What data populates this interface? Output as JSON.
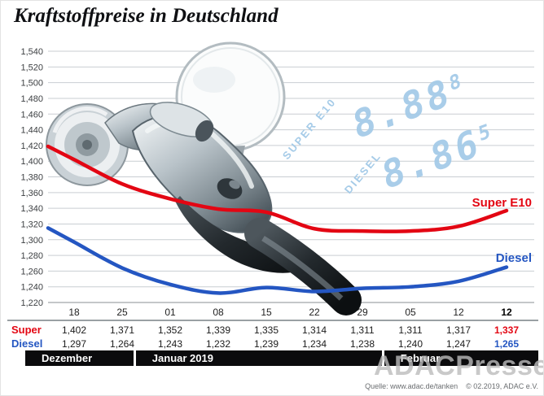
{
  "title": "Kraftstoffpreise in Deutschland",
  "watermark": "ADACPresse",
  "source": "Quelle: www.adac.de/tanken    © 02.2019, ADAC e.V.",
  "display": {
    "color": "#a5cbe8",
    "rows": [
      {
        "label": "SUPER E10",
        "value": "8.88",
        "suffix": "8"
      },
      {
        "label": "DIESEL",
        "value": "8.86",
        "suffix": "5"
      }
    ]
  },
  "chart_data": {
    "type": "line",
    "title": "Kraftstoffpreise in Deutschland",
    "x": [
      "18",
      "25",
      "01",
      "08",
      "15",
      "22",
      "29",
      "05",
      "12",
      "12"
    ],
    "series": [
      {
        "name": "Super E10",
        "color": "#e30613",
        "values": [
          1.402,
          1.371,
          1.352,
          1.339,
          1.335,
          1.314,
          1.311,
          1.311,
          1.317,
          1.337
        ]
      },
      {
        "name": "Diesel",
        "color": "#2456c2",
        "values": [
          1.297,
          1.264,
          1.243,
          1.232,
          1.239,
          1.234,
          1.238,
          1.24,
          1.247,
          1.265
        ]
      }
    ],
    "ylim": [
      1.22,
      1.54
    ],
    "y_tick_step": 0.02,
    "y_tick_labels": [
      "1,540",
      "1,520",
      "1,500",
      "1,480",
      "1,460",
      "1,440",
      "1,420",
      "1,400",
      "1,380",
      "1,360",
      "1,340",
      "1,320",
      "1,300",
      "1,280",
      "1,260",
      "1,240",
      "1,220"
    ],
    "grid": true,
    "legend_position": "right-of-line-ends",
    "months": [
      {
        "label": "Dezember",
        "span": 2
      },
      {
        "label": "Januar 2019",
        "span": 5
      },
      {
        "label": "Februar",
        "span": 3
      }
    ]
  },
  "table": {
    "rows": [
      {
        "label": "Super",
        "color": "#e30613",
        "values": [
          "1,402",
          "1,371",
          "1,352",
          "1,339",
          "1,335",
          "1,314",
          "1,311",
          "1,311",
          "1,317",
          "1,337"
        ]
      },
      {
        "label": "Diesel",
        "color": "#2456c2",
        "values": [
          "1,297",
          "1,264",
          "1,243",
          "1,232",
          "1,239",
          "1,234",
          "1,238",
          "1,240",
          "1,247",
          "1,265"
        ]
      }
    ]
  }
}
